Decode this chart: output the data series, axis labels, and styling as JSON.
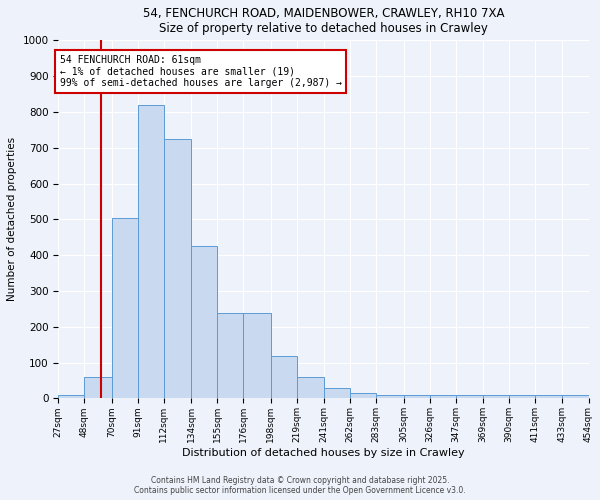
{
  "title_line1": "54, FENCHURCH ROAD, MAIDENBOWER, CRAWLEY, RH10 7XA",
  "title_line2": "Size of property relative to detached houses in Crawley",
  "xlabel": "Distribution of detached houses by size in Crawley",
  "ylabel": "Number of detached properties",
  "bin_edges": [
    27,
    48,
    70,
    91,
    112,
    134,
    155,
    176,
    198,
    219,
    241,
    262,
    283,
    305,
    326,
    347,
    369,
    390,
    411,
    433,
    454
  ],
  "bar_heights": [
    10,
    60,
    505,
    820,
    725,
    425,
    240,
    240,
    120,
    60,
    30,
    15,
    10,
    10,
    10,
    10,
    10,
    10,
    10,
    10
  ],
  "bar_color": "#c9daf0",
  "bar_edge_color": "#5b9bd5",
  "property_size": 61,
  "vline_color": "#cc0000",
  "annotation_text": "54 FENCHURCH ROAD: 61sqm\n← 1% of detached houses are smaller (19)\n99% of semi-detached houses are larger (2,987) →",
  "annotation_box_color": "#ffffff",
  "annotation_box_edge_color": "#cc0000",
  "footer_text": "Contains HM Land Registry data © Crown copyright and database right 2025.\nContains public sector information licensed under the Open Government Licence v3.0.",
  "background_color": "#eef2fa",
  "ylim": [
    0,
    1000
  ],
  "yticks": [
    0,
    100,
    200,
    300,
    400,
    500,
    600,
    700,
    800,
    900,
    1000
  ]
}
